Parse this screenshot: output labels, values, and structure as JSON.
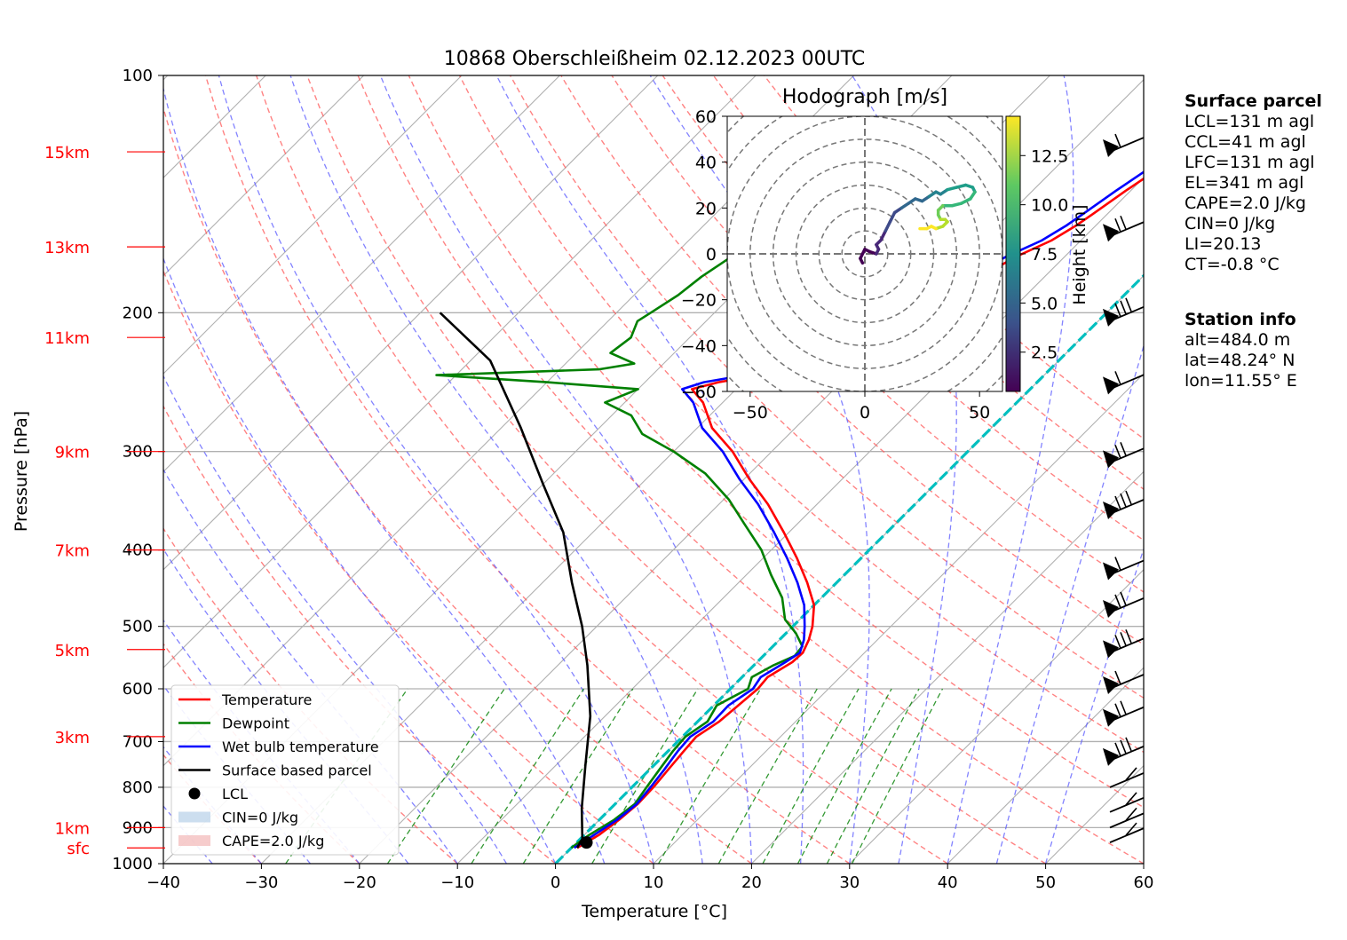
{
  "chart_data": [
    {
      "type": "line",
      "subtype": "skew-T log-p sounding",
      "title": "10868 Oberschleißheim 02.12.2023 00UTC",
      "xlabel": "Temperature [°C]",
      "ylabel": "Pressure [hPa]",
      "xlim": [
        -40,
        60
      ],
      "ylim": [
        1000,
        100
      ],
      "y_scale": "log",
      "grid": true,
      "x_ticks": [
        "−40",
        "−30",
        "−20",
        "−10",
        "0",
        "10",
        "20",
        "30",
        "40",
        "50",
        "60"
      ],
      "y_ticks": [
        "100",
        "200",
        "300",
        "400",
        "500",
        "600",
        "700",
        "800",
        "900",
        "1000"
      ],
      "height_labels": [
        {
          "label": "sfc",
          "p": 955
        },
        {
          "label": "1km",
          "p": 900
        },
        {
          "label": "3km",
          "p": 690
        },
        {
          "label": "5km",
          "p": 535
        },
        {
          "label": "7km",
          "p": 400
        },
        {
          "label": "9km",
          "p": 300
        },
        {
          "label": "11km",
          "p": 215
        },
        {
          "label": "13km",
          "p": 165
        },
        {
          "label": "15km",
          "p": 125
        }
      ],
      "series": [
        {
          "name": "Temperature",
          "color": "#ff0000",
          "points": [
            [
              0.6,
              955
            ],
            [
              1.5,
              920
            ],
            [
              2.0,
              880
            ],
            [
              2.3,
              840
            ],
            [
              2.2,
              800
            ],
            [
              1.9,
              760
            ],
            [
              1.6,
              720
            ],
            [
              1.4,
              690
            ],
            [
              2.2,
              660
            ],
            [
              2.5,
              630
            ],
            [
              2.8,
              600
            ],
            [
              2.6,
              580
            ],
            [
              3.6,
              555
            ],
            [
              3.7,
              540
            ],
            [
              3.0,
              520
            ],
            [
              2.0,
              500
            ],
            [
              0.0,
              470
            ],
            [
              -3.0,
              440
            ],
            [
              -6.5,
              410
            ],
            [
              -10.5,
              380
            ],
            [
              -15.0,
              350
            ],
            [
              -19.5,
              325
            ],
            [
              -24.0,
              300
            ],
            [
              -28.5,
              280
            ],
            [
              -32.0,
              260
            ],
            [
              -34.5,
              250
            ],
            [
              -32.5,
              245
            ],
            [
              -29.0,
              240
            ],
            [
              -26.0,
              232
            ],
            [
              -24.5,
              225
            ],
            [
              -22.5,
              215
            ],
            [
              -21.5,
              205
            ],
            [
              -20.0,
              200
            ],
            [
              -18.5,
              190
            ],
            [
              -16.5,
              180
            ],
            [
              -15.0,
              170
            ],
            [
              -13.0,
              162
            ],
            [
              -12.0,
              155
            ],
            [
              -11.5,
              150
            ],
            [
              -10.5,
              140
            ],
            [
              -9.5,
              132
            ],
            [
              -8.0,
              126
            ],
            [
              -7.0,
              122
            ]
          ]
        },
        {
          "name": "Dewpoint",
          "color": "#008000",
          "points": [
            [
              0.0,
              955
            ],
            [
              0.5,
              920
            ],
            [
              1.5,
              880
            ],
            [
              2.0,
              840
            ],
            [
              1.5,
              800
            ],
            [
              1.0,
              760
            ],
            [
              0.5,
              720
            ],
            [
              0.3,
              690
            ],
            [
              1.0,
              660
            ],
            [
              0.3,
              630
            ],
            [
              1.8,
              600
            ],
            [
              1.0,
              580
            ],
            [
              2.0,
              560
            ],
            [
              3.2,
              545
            ],
            [
              3.0,
              530
            ],
            [
              1.0,
              510
            ],
            [
              -1.5,
              490
            ],
            [
              -4.0,
              460
            ],
            [
              -7.5,
              430
            ],
            [
              -11.0,
              400
            ],
            [
              -15.5,
              370
            ],
            [
              -19.5,
              345
            ],
            [
              -24.5,
              320
            ],
            [
              -30.0,
              300
            ],
            [
              -35.0,
              285
            ],
            [
              -38.0,
              270
            ],
            [
              -42.0,
              260
            ],
            [
              -40.0,
              250
            ],
            [
              -50.0,
              245
            ],
            [
              -62.0,
              240
            ],
            [
              -46.0,
              236
            ],
            [
              -43.0,
              232
            ],
            [
              -46.5,
              225
            ],
            [
              -46.0,
              215
            ],
            [
              -47.0,
              205
            ],
            [
              -46.5,
              200
            ],
            [
              -45.5,
              190
            ],
            [
              -45.0,
              180
            ],
            [
              -44.0,
              170
            ],
            [
              -42.0,
              160
            ],
            [
              -40.0,
              150
            ],
            [
              -39.0,
              140
            ],
            [
              -37.5,
              133
            ],
            [
              -36.5,
              127
            ],
            [
              -35.5,
              123
            ]
          ]
        },
        {
          "name": "Wet bulb temperature",
          "color": "#0000ff",
          "points": [
            [
              0.3,
              955
            ],
            [
              1.0,
              920
            ],
            [
              1.8,
              880
            ],
            [
              2.2,
              840
            ],
            [
              1.9,
              800
            ],
            [
              1.5,
              760
            ],
            [
              1.0,
              720
            ],
            [
              0.8,
              690
            ],
            [
              1.6,
              660
            ],
            [
              1.5,
              630
            ],
            [
              2.3,
              600
            ],
            [
              1.9,
              580
            ],
            [
              2.9,
              555
            ],
            [
              3.4,
              540
            ],
            [
              2.5,
              520
            ],
            [
              1.2,
              500
            ],
            [
              -1.0,
              470
            ],
            [
              -4.0,
              440
            ],
            [
              -7.5,
              410
            ],
            [
              -11.5,
              380
            ],
            [
              -16.0,
              350
            ],
            [
              -20.5,
              325
            ],
            [
              -25.0,
              300
            ],
            [
              -29.5,
              280
            ],
            [
              -33.0,
              260
            ],
            [
              -35.5,
              250
            ],
            [
              -34.0,
              245
            ],
            [
              -30.5,
              240
            ],
            [
              -27.0,
              232
            ],
            [
              -25.5,
              225
            ],
            [
              -23.5,
              215
            ],
            [
              -22.5,
              205
            ],
            [
              -21.0,
              200
            ],
            [
              -19.5,
              190
            ],
            [
              -17.5,
              180
            ],
            [
              -16.0,
              170
            ],
            [
              -14.0,
              162
            ],
            [
              -13.0,
              155
            ],
            [
              -12.5,
              150
            ],
            [
              -11.5,
              140
            ],
            [
              -10.5,
              132
            ],
            [
              -8.8,
              126
            ],
            [
              -7.8,
              122
            ]
          ]
        },
        {
          "name": "Surface based parcel",
          "color": "#000000",
          "points": [
            [
              0.6,
              955
            ],
            [
              0.2,
              930
            ],
            [
              -3.0,
              850
            ],
            [
              -7.0,
              750
            ],
            [
              -11.5,
              650
            ],
            [
              -17.0,
              560
            ],
            [
              -21.5,
              500
            ],
            [
              -27.0,
              440
            ],
            [
              -33.0,
              380
            ],
            [
              -40.0,
              330
            ],
            [
              -48.0,
              280
            ],
            [
              -58.0,
              230
            ],
            [
              -68.0,
              200
            ]
          ]
        }
      ],
      "lcl": {
        "name": "LCL",
        "t": 1.0,
        "p": 940
      },
      "freezing_line": {
        "color": "#00bfbf",
        "t": 0
      },
      "legend": {
        "placement": "lower-left",
        "entries": [
          "Temperature",
          "Dewpoint",
          "Wet bulb temperature",
          "Surface based parcel",
          "LCL",
          "CIN=0 J/kg",
          "CAPE=2.0 J/kg"
        ]
      },
      "wind_barbs_at_p": [
        125,
        160,
        205,
        250,
        310,
        360,
        430,
        480,
        540,
        600,
        660,
        740,
        800,
        860,
        900,
        940
      ]
    },
    {
      "type": "line",
      "subtype": "hodograph",
      "title": "Hodograph [m/s]",
      "xlim": [
        -60,
        60
      ],
      "ylim": [
        -60,
        60
      ],
      "x_ticks": [
        "−50",
        "0",
        "50"
      ],
      "y_ticks": [
        "60",
        "40",
        "20",
        "0",
        "−20",
        "−40",
        "−60"
      ],
      "colorbar": {
        "label": "Height [km]",
        "ticks": [
          "2.5",
          "5.0",
          "7.5",
          "10.0",
          "12.5"
        ],
        "range": [
          0.5,
          14.5
        ],
        "colormap": "viridis"
      },
      "points": [
        [
          -1,
          -4
        ],
        [
          -2,
          -2
        ],
        [
          0,
          2
        ],
        [
          2,
          1
        ],
        [
          5,
          0
        ],
        [
          6,
          2
        ],
        [
          5,
          4
        ],
        [
          7,
          6
        ],
        [
          9,
          10
        ],
        [
          11,
          14
        ],
        [
          13,
          18
        ],
        [
          16,
          20
        ],
        [
          19,
          22
        ],
        [
          22,
          24
        ],
        [
          25,
          23
        ],
        [
          28,
          25
        ],
        [
          31,
          27
        ],
        [
          33,
          26
        ],
        [
          36,
          28
        ],
        [
          40,
          29
        ],
        [
          44,
          30
        ],
        [
          47,
          29
        ],
        [
          48,
          27
        ],
        [
          46,
          24
        ],
        [
          42,
          22
        ],
        [
          38,
          21
        ],
        [
          34,
          21
        ],
        [
          32,
          19
        ],
        [
          32,
          17
        ],
        [
          33,
          15
        ],
        [
          35,
          15
        ],
        [
          36,
          14
        ],
        [
          34,
          12
        ],
        [
          31,
          11
        ],
        [
          29,
          12
        ],
        [
          27,
          11
        ],
        [
          24,
          11
        ]
      ]
    }
  ],
  "surface_parcel": {
    "heading": "Surface parcel",
    "lines": [
      "LCL=131 m agl",
      "CCL=41 m agl",
      "LFC=131 m agl",
      "EL=341 m agl",
      "CAPE=2.0 J/kg",
      "CIN=0 J/kg",
      "LI=20.13",
      "CT=-0.8 °C"
    ]
  },
  "station_info": {
    "heading": "Station info",
    "lines": [
      "alt=484.0 m",
      "lat=48.24° N",
      "lon=11.55° E"
    ]
  }
}
